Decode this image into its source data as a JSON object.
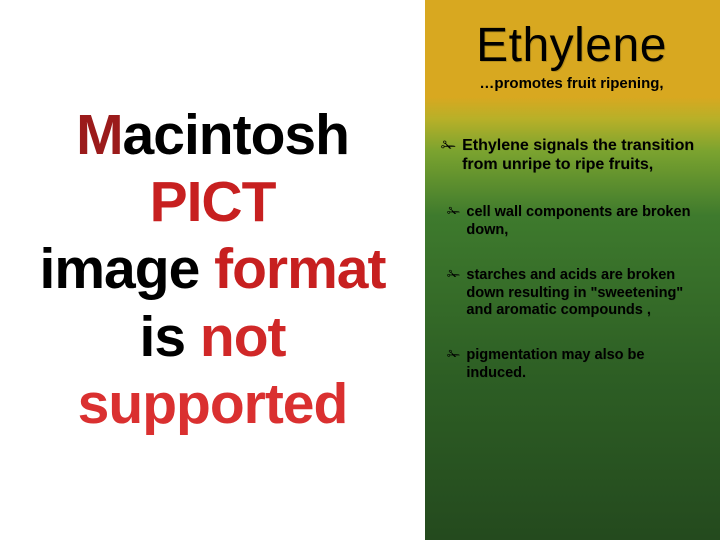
{
  "slide": {
    "background": {
      "gradient_stops": [
        "#d8a820",
        "#d8a820",
        "#b8b028",
        "#7ba32f",
        "#3e7a2d",
        "#2d5e24",
        "#244a1e"
      ],
      "gradient_positions_pct": [
        0,
        18,
        22,
        28,
        40,
        70,
        100
      ]
    },
    "left_panel": {
      "background_color": "#ffffff",
      "lines": [
        {
          "text": "Macintosh PICT",
          "colors": [
            "#9b1b1b",
            "#c72020"
          ]
        },
        {
          "text": "image format",
          "colors": [
            "#000000",
            "#c72020"
          ]
        },
        {
          "text": "is not supported",
          "colors": [
            "#d02828",
            "#da3030"
          ]
        }
      ],
      "font_size_pt": 43,
      "font_weight": 700
    },
    "right_panel": {
      "title": "Ethylene",
      "title_font_size_pt": 36,
      "subtitle": "…promotes fruit ripening,",
      "subtitle_font_size_pt": 11,
      "bullets": [
        {
          "level": 0,
          "glyph": "✁",
          "text": "Ethylene signals the transition from unripe to ripe fruits,",
          "font_size_pt": 12
        },
        {
          "level": 1,
          "glyph": "✁",
          "text": "cell wall components are broken down,",
          "font_size_pt": 11
        },
        {
          "level": 1,
          "glyph": "✁",
          "text": "starches and acids are broken down resulting in \"sweetening\" and aromatic compounds ,",
          "font_size_pt": 11
        },
        {
          "level": 1,
          "glyph": "✁",
          "text": "pigmentation may also be induced.",
          "font_size_pt": 11
        }
      ],
      "text_color": "#000000"
    }
  }
}
